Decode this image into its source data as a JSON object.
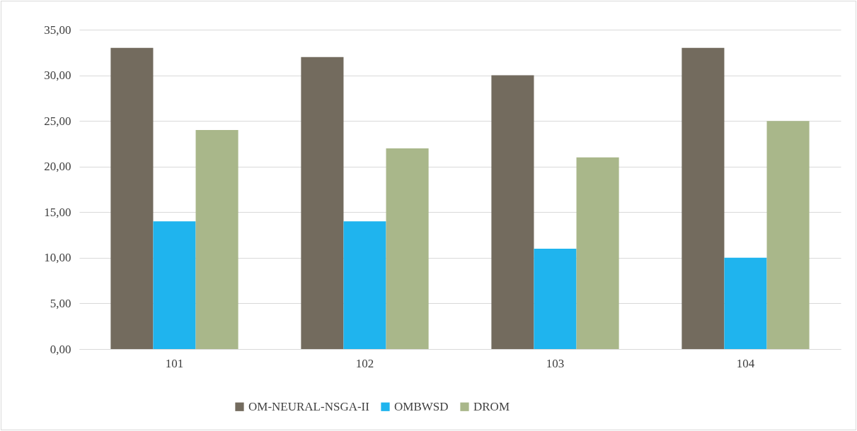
{
  "chart_data": {
    "type": "bar",
    "categories": [
      "101",
      "102",
      "103",
      "104"
    ],
    "series": [
      {
        "name": "OM-NEURAL-NSGA-II",
        "color": "#736b5e",
        "values": [
          33,
          32,
          30,
          33
        ]
      },
      {
        "name": "OMBWSD",
        "color": "#1fb4ee",
        "values": [
          14,
          14,
          11,
          10
        ]
      },
      {
        "name": "DROM",
        "color": "#a9b78a",
        "values": [
          24,
          22,
          21,
          25
        ]
      }
    ],
    "ylim": [
      0,
      35
    ],
    "yticks": [
      {
        "value": 0,
        "label": "0,00"
      },
      {
        "value": 5,
        "label": "5,00"
      },
      {
        "value": 10,
        "label": "10,00"
      },
      {
        "value": 15,
        "label": "15,00"
      },
      {
        "value": 20,
        "label": "20,00"
      },
      {
        "value": 25,
        "label": "25,00"
      },
      {
        "value": 30,
        "label": "30,00"
      },
      {
        "value": 35,
        "label": "35,00"
      }
    ],
    "grid": "y",
    "legend": "bottom"
  }
}
